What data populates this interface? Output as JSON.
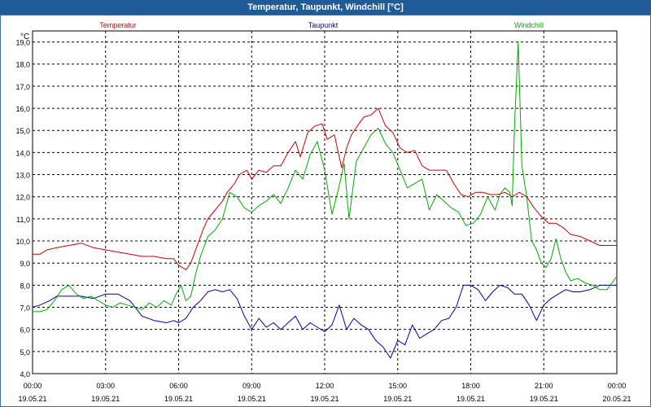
{
  "window": {
    "title": "Temperatur, Taupunkt, Windchill [°C]"
  },
  "chart_data": {
    "type": "line",
    "title": "Temperatur, Taupunkt, Windchill [°C]",
    "ylabel": "°C",
    "xlabel": "",
    "ylim": [
      4.0,
      19.5
    ],
    "xlim_hours": [
      0,
      24
    ],
    "grid": true,
    "y_ticks": [
      "4,0",
      "5,0",
      "6,0",
      "7,0",
      "8,0",
      "9,0",
      "10,0",
      "11,0",
      "12,0",
      "13,0",
      "14,0",
      "15,0",
      "16,0",
      "17,0",
      "18,0",
      "19,0"
    ],
    "x_ticks": [
      {
        "time": "00:00",
        "date": "19.05.21"
      },
      {
        "time": "03:00",
        "date": "19.05.21"
      },
      {
        "time": "06:00",
        "date": "19.05.21"
      },
      {
        "time": "09:00",
        "date": "19.05.21"
      },
      {
        "time": "12:00",
        "date": "19.05.21"
      },
      {
        "time": "15:00",
        "date": "19.05.21"
      },
      {
        "time": "18:00",
        "date": "19.05.21"
      },
      {
        "time": "21:00",
        "date": "19.05.21"
      },
      {
        "time": "00:00",
        "date": "20.05.21"
      }
    ],
    "series": [
      {
        "name": "Temperatur",
        "color": "#cc0000",
        "x": [
          0,
          0.3,
          0.6,
          1,
          1.5,
          2,
          2.5,
          3,
          3.5,
          4,
          4.5,
          5,
          5.5,
          5.8,
          6,
          6.3,
          6.5,
          6.7,
          7,
          7.2,
          7.5,
          7.8,
          8,
          8.3,
          8.5,
          8.8,
          9,
          9.3,
          9.6,
          9.9,
          10.2,
          10.5,
          10.8,
          11,
          11.3,
          11.6,
          11.9,
          12.1,
          12.4,
          12.7,
          12.9,
          13.1,
          13.4,
          13.6,
          13.9,
          14.2,
          14.5,
          14.8,
          15.1,
          15.4,
          15.7,
          16,
          16.3,
          16.6,
          17,
          17.3,
          17.6,
          17.9,
          18.2,
          18.5,
          18.8,
          19.1,
          19.4,
          19.7,
          20,
          20.3,
          20.6,
          20.9,
          21.2,
          21.5,
          21.8,
          22.1,
          22.5,
          22.9,
          23.3,
          23.7,
          24
        ],
        "values": [
          9.4,
          9.4,
          9.6,
          9.7,
          9.8,
          9.9,
          9.7,
          9.6,
          9.5,
          9.4,
          9.3,
          9.3,
          9.2,
          9.2,
          8.9,
          8.7,
          9.0,
          9.6,
          10.5,
          11.0,
          11.4,
          11.8,
          12.2,
          12.6,
          13.0,
          13.2,
          12.8,
          13.2,
          13.1,
          13.4,
          13.4,
          14.0,
          14.5,
          13.8,
          14.9,
          15.2,
          15.3,
          14.6,
          14.8,
          13.3,
          14.2,
          14.8,
          15.3,
          15.6,
          15.7,
          16.0,
          15.2,
          14.9,
          14.2,
          14.0,
          14.1,
          13.4,
          13.2,
          13.2,
          13.2,
          12.6,
          12.1,
          12.0,
          12.2,
          12.2,
          12.1,
          12.1,
          12.2,
          12.0,
          12.2,
          12.0,
          11.5,
          11.1,
          10.8,
          10.8,
          10.6,
          10.3,
          10.2,
          10.0,
          9.8,
          9.8,
          9.8
        ]
      },
      {
        "name": "Taupunkt",
        "color": "#0000aa",
        "x": [
          0,
          0.3,
          0.7,
          1,
          1.5,
          2,
          2.5,
          3,
          3.5,
          4,
          4.5,
          5,
          5.5,
          5.8,
          6,
          6.3,
          6.6,
          6.9,
          7.2,
          7.5,
          7.8,
          8.1,
          8.4,
          8.7,
          9,
          9.3,
          9.6,
          9.9,
          10.2,
          10.5,
          10.8,
          11.1,
          11.4,
          11.7,
          12,
          12.3,
          12.6,
          12.9,
          13.2,
          13.5,
          13.8,
          14.1,
          14.4,
          14.7,
          15,
          15.3,
          15.6,
          15.9,
          16.2,
          16.5,
          16.8,
          17.1,
          17.4,
          17.7,
          18,
          18.3,
          18.6,
          18.9,
          19.2,
          19.5,
          19.8,
          20.1,
          20.4,
          20.7,
          21,
          21.3,
          21.6,
          21.9,
          22.2,
          22.5,
          22.9,
          23.3,
          23.6,
          24
        ],
        "values": [
          7.0,
          7.1,
          7.3,
          7.5,
          7.5,
          7.5,
          7.4,
          7.6,
          7.6,
          7.3,
          6.6,
          6.4,
          6.3,
          6.4,
          6.3,
          6.5,
          7.0,
          7.3,
          7.7,
          7.8,
          7.7,
          7.8,
          7.4,
          6.6,
          6.0,
          6.5,
          6.1,
          6.3,
          6.0,
          6.3,
          6.6,
          6.0,
          6.3,
          6.1,
          5.9,
          6.2,
          7.1,
          6.0,
          6.5,
          6.2,
          6.0,
          5.5,
          5.2,
          4.7,
          5.5,
          5.3,
          6.2,
          5.6,
          5.8,
          6.0,
          6.4,
          6.5,
          7.0,
          8.0,
          8.0,
          7.8,
          7.3,
          7.7,
          8.0,
          7.9,
          7.6,
          7.6,
          7.1,
          6.4,
          7.1,
          7.4,
          7.6,
          7.8,
          7.7,
          7.7,
          7.8,
          8.0,
          8.0,
          8.0
        ]
      },
      {
        "name": "Windchill",
        "color": "#00aa00",
        "x": [
          0,
          0.3,
          0.6,
          0.9,
          1.2,
          1.5,
          1.8,
          2.1,
          2.4,
          2.7,
          3,
          3.3,
          3.6,
          3.9,
          4.2,
          4.5,
          4.8,
          5.1,
          5.4,
          5.7,
          5.9,
          6.1,
          6.3,
          6.5,
          6.7,
          6.9,
          7.2,
          7.5,
          7.8,
          8.1,
          8.4,
          8.7,
          9,
          9.3,
          9.6,
          9.9,
          10.2,
          10.5,
          10.8,
          11.1,
          11.4,
          11.7,
          12,
          12.3,
          12.6,
          12.8,
          13,
          13.3,
          13.6,
          13.9,
          14.2,
          14.5,
          14.8,
          15.1,
          15.4,
          15.7,
          16,
          16.3,
          16.6,
          16.9,
          17.2,
          17.5,
          17.8,
          18.1,
          18.4,
          18.7,
          19,
          19.2,
          19.4,
          19.6,
          19.7,
          19.8,
          19.95,
          20.1,
          20.3,
          20.5,
          20.7,
          20.9,
          21.1,
          21.3,
          21.5,
          21.7,
          21.9,
          22.1,
          22.4,
          22.7,
          23,
          23.3,
          23.6,
          24
        ],
        "values": [
          6.8,
          6.8,
          6.9,
          7.3,
          7.8,
          8.0,
          7.6,
          7.4,
          7.5,
          7.3,
          7.1,
          7.0,
          7.2,
          7.1,
          7.0,
          6.9,
          7.2,
          7.0,
          7.3,
          7.1,
          7.6,
          8.0,
          7.3,
          7.5,
          8.5,
          9.3,
          10.2,
          10.5,
          11.0,
          12.2,
          12.0,
          11.5,
          11.3,
          11.6,
          11.8,
          12.1,
          11.7,
          12.4,
          13.2,
          12.8,
          13.9,
          14.5,
          13.2,
          11.2,
          12.5,
          13.5,
          11.0,
          13.6,
          14.2,
          14.8,
          15.1,
          14.4,
          14.0,
          13.2,
          12.4,
          12.6,
          12.8,
          11.4,
          12.1,
          11.8,
          11.5,
          11.3,
          10.7,
          10.8,
          11.2,
          12.0,
          11.4,
          12.1,
          12.4,
          12.2,
          11.6,
          15.3,
          19.0,
          13.4,
          12.0,
          10.0,
          9.6,
          9.0,
          8.8,
          9.2,
          10.1,
          9.2,
          8.6,
          8.2,
          8.3,
          8.1,
          8.0,
          7.8,
          7.8,
          8.4
        ]
      }
    ]
  }
}
